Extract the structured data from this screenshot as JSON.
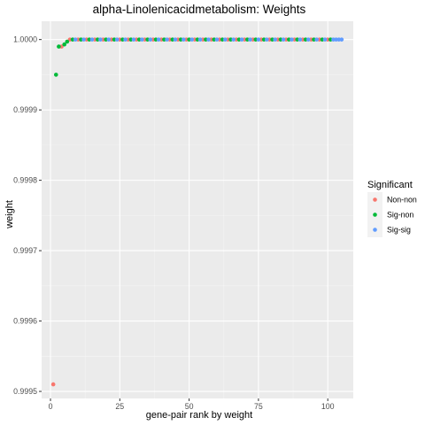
{
  "chart_data": {
    "type": "scatter",
    "title": "alpha-Linolenicacidmetabolism: Weights",
    "xlabel": "gene-pair rank by weight",
    "ylabel": "weight",
    "xlim": [
      -3.2,
      109.2
    ],
    "ylim": [
      0.99949,
      1.000026
    ],
    "x_ticks": [
      0,
      25,
      50,
      75,
      100
    ],
    "x_tick_labels": [
      "0",
      "25",
      "50",
      "75",
      "100"
    ],
    "y_ticks": [
      0.9995,
      0.9996,
      0.9997,
      0.9998,
      0.9999,
      1.0
    ],
    "y_tick_labels": [
      "0.9995",
      "0.9996",
      "0.9997",
      "0.9998",
      "0.9999",
      "1.0000"
    ],
    "grid": true,
    "legend": {
      "title": "Significant",
      "placement": "right",
      "entries": [
        {
          "label": "Non-non",
          "color": "#F8766D"
        },
        {
          "label": "Sig-non",
          "color": "#00BA38"
        },
        {
          "label": "Sig-sig",
          "color": "#619CFF"
        }
      ]
    },
    "series": [
      {
        "name": "Non-non",
        "color": "#F8766D",
        "x": [
          1,
          4,
          7,
          10,
          13,
          16,
          19,
          22,
          25,
          28,
          31,
          34,
          37,
          40,
          43,
          46,
          49,
          52,
          55,
          58,
          61,
          64,
          67,
          70,
          73,
          76,
          79,
          82,
          85,
          88,
          91,
          94,
          97,
          100
        ],
        "y": [
          0.99951,
          0.99999,
          1.0,
          1.0,
          1.0,
          1.0,
          1.0,
          1.0,
          1.0,
          1.0,
          1.0,
          1.0,
          1.0,
          1.0,
          1.0,
          1.0,
          1.0,
          1.0,
          1.0,
          1.0,
          1.0,
          1.0,
          1.0,
          1.0,
          1.0,
          1.0,
          1.0,
          1.0,
          1.0,
          1.0,
          1.0,
          1.0,
          1.0,
          1.0
        ]
      },
      {
        "name": "Sig-non",
        "color": "#00BA38",
        "x": [
          2,
          3,
          5,
          6,
          8,
          11,
          14,
          17,
          20,
          23,
          26,
          29,
          32,
          35,
          38,
          41,
          44,
          47,
          50,
          53,
          56,
          59,
          62,
          65,
          68,
          71,
          74,
          77,
          80,
          83,
          86,
          89,
          92,
          95,
          98,
          101
        ],
        "y": [
          0.99995,
          0.99999,
          0.999993,
          0.999997,
          1.0,
          1.0,
          1.0,
          1.0,
          1.0,
          1.0,
          1.0,
          1.0,
          1.0,
          1.0,
          1.0,
          1.0,
          1.0,
          1.0,
          1.0,
          1.0,
          1.0,
          1.0,
          1.0,
          1.0,
          1.0,
          1.0,
          1.0,
          1.0,
          1.0,
          1.0,
          1.0,
          1.0,
          1.0,
          1.0,
          1.0,
          1.0
        ]
      },
      {
        "name": "Sig-sig",
        "color": "#619CFF",
        "x": [
          9,
          12,
          15,
          18,
          21,
          24,
          27,
          30,
          33,
          36,
          39,
          42,
          45,
          48,
          51,
          54,
          57,
          60,
          63,
          66,
          69,
          72,
          75,
          78,
          81,
          84,
          87,
          90,
          93,
          96,
          99,
          102,
          103,
          104,
          105
        ],
        "y": [
          1.0,
          1.0,
          1.0,
          1.0,
          1.0,
          1.0,
          1.0,
          1.0,
          1.0,
          1.0,
          1.0,
          1.0,
          1.0,
          1.0,
          1.0,
          1.0,
          1.0,
          1.0,
          1.0,
          1.0,
          1.0,
          1.0,
          1.0,
          1.0,
          1.0,
          1.0,
          1.0,
          1.0,
          1.0,
          1.0,
          1.0,
          1.0,
          1.0,
          1.0,
          1.0
        ]
      }
    ]
  }
}
